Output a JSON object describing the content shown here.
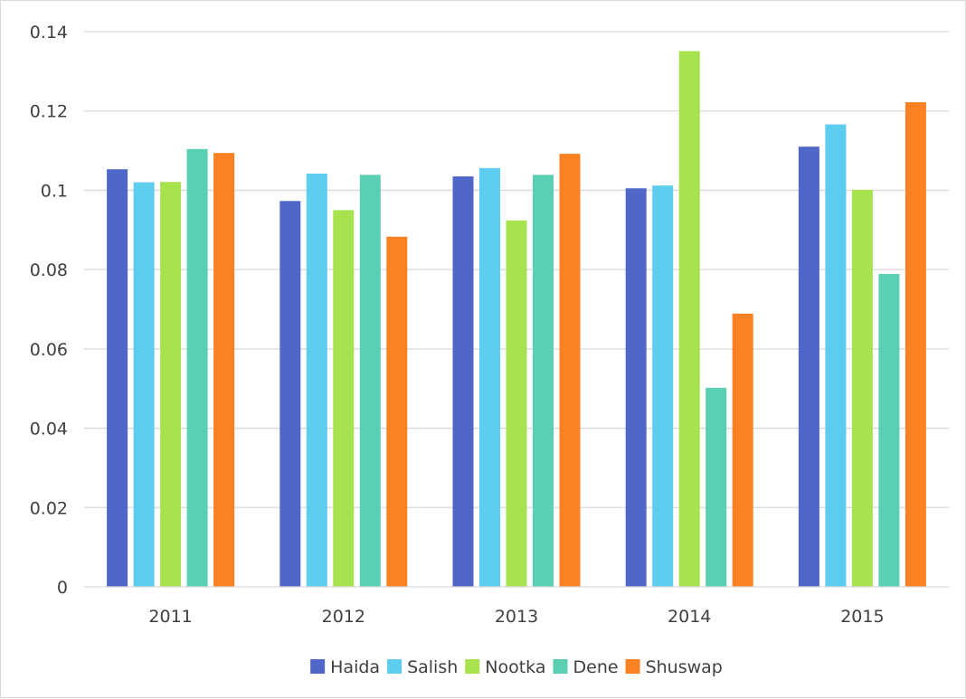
{
  "chart_data": {
    "type": "bar",
    "title": "",
    "xlabel": "",
    "ylabel": "",
    "categories": [
      "2011",
      "2012",
      "2013",
      "2014",
      "2015"
    ],
    "ylim": [
      0,
      0.14
    ],
    "y_ticks": [
      "0",
      "0.02",
      "0.04",
      "0.06",
      "0.08",
      "0.1",
      "0.12",
      "0.14"
    ],
    "y_tick_values": [
      0,
      0.02,
      0.04,
      0.06,
      0.08,
      0.1,
      0.12,
      0.14
    ],
    "grid": "horizontal",
    "legend_position": "bottom",
    "series": [
      {
        "name": "Haida",
        "color": "#4f67c9",
        "values": [
          0.1053,
          0.0973,
          0.1035,
          0.1005,
          0.111
        ]
      },
      {
        "name": "Salish",
        "color": "#5ccdef",
        "values": [
          0.102,
          0.1042,
          0.1056,
          0.1012,
          0.1166
        ]
      },
      {
        "name": "Nootka",
        "color": "#a6e34f",
        "values": [
          0.1021,
          0.095,
          0.0924,
          0.1351,
          0.1001
        ]
      },
      {
        "name": "Dene",
        "color": "#59cfb3",
        "values": [
          0.1104,
          0.1039,
          0.1039,
          0.0502,
          0.0789
        ]
      },
      {
        "name": "Shuswap",
        "color": "#fb8122",
        "values": [
          0.1094,
          0.0883,
          0.1092,
          0.0689,
          0.1222
        ]
      }
    ]
  }
}
